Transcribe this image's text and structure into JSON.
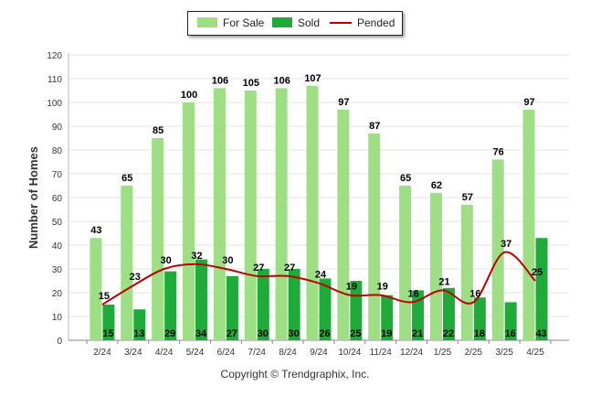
{
  "chart_data": {
    "type": "bar",
    "categories": [
      "2/24",
      "3/24",
      "4/24",
      "5/24",
      "6/24",
      "7/24",
      "8/24",
      "9/24",
      "10/24",
      "11/24",
      "12/24",
      "1/25",
      "2/25",
      "3/25",
      "4/25"
    ],
    "ylabel": "Number of Homes",
    "xlabel": "",
    "ylim": [
      0,
      120
    ],
    "yticks": [
      0,
      10,
      20,
      30,
      40,
      50,
      60,
      70,
      80,
      90,
      100,
      110,
      120
    ],
    "grid": true,
    "legend_position": "top-center",
    "series": [
      {
        "name": "For Sale",
        "kind": "bar",
        "color": "#9edf85",
        "values": [
          43,
          65,
          85,
          100,
          106,
          105,
          106,
          107,
          97,
          87,
          65,
          62,
          57,
          76,
          97
        ]
      },
      {
        "name": "Sold",
        "kind": "bar",
        "color": "#1fab3a",
        "values": [
          15,
          13,
          29,
          34,
          27,
          30,
          30,
          26,
          25,
          19,
          21,
          22,
          18,
          16,
          43
        ]
      },
      {
        "name": "Pended",
        "kind": "line",
        "color": "#c00000",
        "values": [
          15,
          23,
          30,
          32,
          30,
          27,
          27,
          24,
          19,
          19,
          16,
          21,
          16,
          37,
          25
        ]
      }
    ]
  },
  "footer": {
    "copyright": "Copyright © Trendgraphix, Inc."
  }
}
